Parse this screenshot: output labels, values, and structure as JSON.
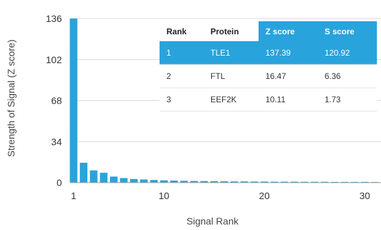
{
  "chart_data": {
    "type": "bar",
    "xlabel": "Signal Rank",
    "ylabel": "Strength of Signal (Z score)",
    "x_ticks": [
      1,
      10,
      20,
      30
    ],
    "y_ticks": [
      0,
      34,
      68,
      102,
      136
    ],
    "xlim": [
      0.5,
      31.5
    ],
    "ylim": [
      0,
      136
    ],
    "grid": "horizontal",
    "bar_color": "#29a3db",
    "x": [
      1,
      2,
      3,
      4,
      5,
      6,
      7,
      8,
      9,
      10,
      11,
      12,
      13,
      14,
      15,
      16,
      17,
      18,
      19,
      20,
      21,
      22,
      23,
      24,
      25,
      26,
      27,
      28,
      29,
      30,
      31
    ],
    "values": [
      137.39,
      16.47,
      10.11,
      8.2,
      5.0,
      3.8,
      3.0,
      2.6,
      2.2,
      1.9,
      1.7,
      1.5,
      1.4,
      1.3,
      1.2,
      1.1,
      1.0,
      1.0,
      0.9,
      0.9,
      0.8,
      0.8,
      0.8,
      0.7,
      0.7,
      0.7,
      0.6,
      0.6,
      0.6,
      0.6,
      0.5
    ],
    "table": {
      "highlight_color": "#29a3db",
      "columns": [
        "Rank",
        "Protein",
        "Z score",
        "S score"
      ],
      "highlighted_columns": [
        2,
        3
      ],
      "rows": [
        [
          "1",
          "TLE1",
          "137.39",
          "120.92"
        ],
        [
          "2",
          "FTL",
          "16.47",
          "6.36"
        ],
        [
          "3",
          "EEF2K",
          "10.11",
          "1.73"
        ]
      ],
      "highlighted_row": 0
    }
  }
}
